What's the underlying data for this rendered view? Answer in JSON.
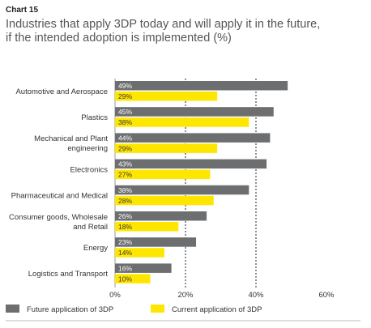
{
  "header": {
    "chart_number": "Chart 15",
    "title_line1": "Industries that apply 3DP today and will apply it in the future,",
    "title_line2": "if the intended adoption is implemented  (%)"
  },
  "colors": {
    "future": "#6d6e70",
    "current": "#ffe600"
  },
  "chart_data": {
    "type": "bar",
    "orientation": "horizontal",
    "categories": [
      [
        "Automotive and Aerospace"
      ],
      [
        "Plastics"
      ],
      [
        "Mechanical and Plant",
        "engineering"
      ],
      [
        "Electronics"
      ],
      [
        "Pharmaceutical and Medical"
      ],
      [
        "Consumer goods, Wholesale",
        "and Retail"
      ],
      [
        "Energy"
      ],
      [
        "Logistics and Transport"
      ]
    ],
    "series": [
      {
        "name": "Future application of 3DP",
        "values": [
          49,
          45,
          44,
          43,
          38,
          26,
          23,
          16
        ]
      },
      {
        "name": "Current application of 3DP",
        "values": [
          29,
          38,
          29,
          27,
          28,
          18,
          14,
          10
        ]
      }
    ],
    "xlim": [
      0,
      60
    ],
    "xticks": [
      "0%",
      "20%",
      "40%",
      "60%"
    ],
    "xtick_values": [
      0,
      20,
      40,
      60
    ],
    "grid": true,
    "legend_position": "bottom"
  }
}
